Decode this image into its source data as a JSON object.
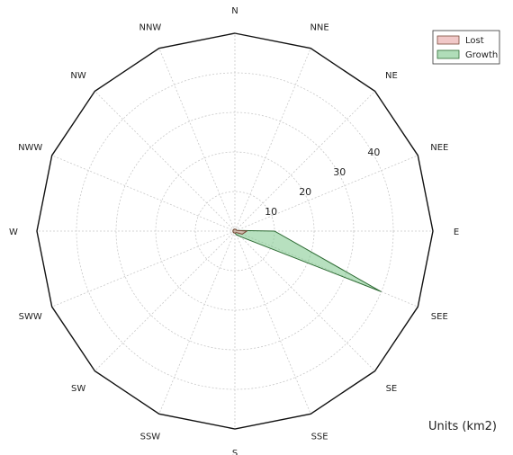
{
  "chart_data": {
    "type": "radar",
    "directions": [
      "N",
      "NNE",
      "NE",
      "NEE",
      "E",
      "SEE",
      "SE",
      "SSE",
      "S",
      "SSW",
      "SW",
      "SWW",
      "W",
      "NWW",
      "NW",
      "NNW"
    ],
    "radial_ticks": [
      "10",
      "20",
      "30",
      "40"
    ],
    "rmax": 50,
    "series": [
      {
        "name": "Lost",
        "values": [
          0.5,
          0.5,
          0.5,
          0.5,
          3,
          2,
          0.5,
          0.5,
          0.5,
          0.5,
          0.5,
          0.5,
          0.5,
          0.5,
          0.5,
          0.5
        ],
        "fill": "#e8a3a3",
        "stroke": "#7a4a3a"
      },
      {
        "name": "Growth",
        "values": [
          0.5,
          0.5,
          0.5,
          0.5,
          10,
          40,
          2,
          1,
          0.5,
          0.5,
          0.5,
          0.5,
          0.5,
          0.5,
          0.5,
          0.5
        ],
        "fill": "#7cc68a",
        "stroke": "#2e6b34"
      }
    ],
    "legend_placement": "top-right",
    "units_label": "Units (km2)",
    "grid": true
  }
}
